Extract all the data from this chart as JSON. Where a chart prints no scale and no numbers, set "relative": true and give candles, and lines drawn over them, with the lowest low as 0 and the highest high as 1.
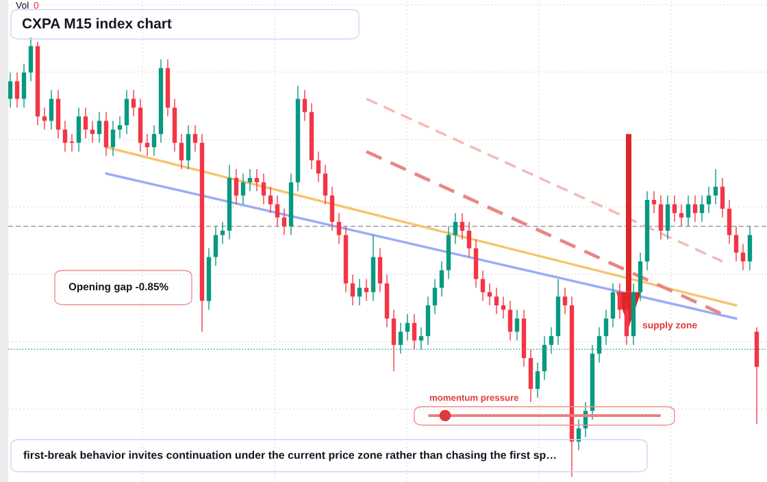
{
  "chart_data": {
    "type": "candlestick",
    "title": "CXPA M15 index chart",
    "relative": true,
    "grid": true,
    "categories": [
      null,
      null,
      null,
      null,
      null,
      null,
      null,
      null,
      null,
      null,
      null,
      null,
      null,
      null,
      null,
      null,
      null,
      null,
      null,
      null,
      null,
      null,
      null,
      null,
      null,
      null,
      null,
      null,
      null,
      null,
      null,
      null,
      null,
      null,
      null,
      null,
      null,
      null,
      null,
      null,
      null,
      null,
      null,
      null,
      null,
      null,
      null,
      null,
      null,
      null,
      null,
      null,
      null,
      null,
      null,
      null,
      null,
      null,
      null,
      null,
      null,
      null,
      null,
      null,
      null,
      null,
      null,
      null,
      null,
      null,
      null,
      null,
      null,
      null,
      null,
      null,
      null,
      null,
      null,
      null,
      null,
      null,
      null,
      null,
      null,
      null,
      null,
      null,
      null,
      null,
      null,
      null,
      null,
      null,
      null,
      null,
      null,
      null,
      null,
      null,
      null,
      null,
      null,
      null,
      null,
      null,
      null,
      null,
      null,
      null
    ],
    "ohlc": [
      [
        0.86,
        0.92,
        0.84,
        0.9
      ],
      [
        0.9,
        0.92,
        0.84,
        0.86
      ],
      [
        0.86,
        0.94,
        0.84,
        0.92
      ],
      [
        0.92,
        1.0,
        0.9,
        0.98
      ],
      [
        0.98,
        0.99,
        0.8,
        0.82
      ],
      [
        0.82,
        0.84,
        0.79,
        0.81
      ],
      [
        0.81,
        0.88,
        0.79,
        0.86
      ],
      [
        0.86,
        0.88,
        0.77,
        0.79
      ],
      [
        0.79,
        0.81,
        0.74,
        0.76
      ],
      [
        0.76,
        0.78,
        0.74,
        0.76
      ],
      [
        0.76,
        0.84,
        0.74,
        0.82
      ],
      [
        0.82,
        0.84,
        0.77,
        0.79
      ],
      [
        0.79,
        0.81,
        0.76,
        0.78
      ],
      [
        0.78,
        0.83,
        0.76,
        0.81
      ],
      [
        0.81,
        0.83,
        0.73,
        0.75
      ],
      [
        0.75,
        0.81,
        0.73,
        0.79
      ],
      [
        0.79,
        0.82,
        0.77,
        0.8
      ],
      [
        0.8,
        0.88,
        0.78,
        0.86
      ],
      [
        0.86,
        0.88,
        0.82,
        0.84
      ],
      [
        0.84,
        0.86,
        0.74,
        0.76
      ],
      [
        0.76,
        0.78,
        0.73,
        0.75
      ],
      [
        0.75,
        0.8,
        0.73,
        0.78
      ],
      [
        0.78,
        0.95,
        0.76,
        0.93
      ],
      [
        0.93,
        0.95,
        0.82,
        0.84
      ],
      [
        0.84,
        0.86,
        0.74,
        0.76
      ],
      [
        0.76,
        0.78,
        0.7,
        0.72
      ],
      [
        0.72,
        0.8,
        0.7,
        0.78
      ],
      [
        0.78,
        0.8,
        0.74,
        0.76
      ],
      [
        0.76,
        0.78,
        0.33,
        0.4
      ],
      [
        0.4,
        0.52,
        0.38,
        0.5
      ],
      [
        0.5,
        0.57,
        0.48,
        0.55
      ],
      [
        0.55,
        0.58,
        0.53,
        0.56
      ],
      [
        0.56,
        0.71,
        0.54,
        0.68
      ],
      [
        0.68,
        0.7,
        0.62,
        0.64
      ],
      [
        0.64,
        0.69,
        0.62,
        0.67
      ],
      [
        0.67,
        0.7,
        0.65,
        0.68
      ],
      [
        0.68,
        0.7,
        0.65,
        0.67
      ],
      [
        0.67,
        0.69,
        0.62,
        0.64
      ],
      [
        0.64,
        0.66,
        0.6,
        0.62
      ],
      [
        0.62,
        0.64,
        0.57,
        0.59
      ],
      [
        0.59,
        0.61,
        0.55,
        0.57
      ],
      [
        0.57,
        0.69,
        0.55,
        0.67
      ],
      [
        0.67,
        0.89,
        0.65,
        0.86
      ],
      [
        0.86,
        0.88,
        0.81,
        0.83
      ],
      [
        0.83,
        0.85,
        0.7,
        0.72
      ],
      [
        0.72,
        0.74,
        0.67,
        0.69
      ],
      [
        0.69,
        0.71,
        0.62,
        0.64
      ],
      [
        0.64,
        0.66,
        0.56,
        0.58
      ],
      [
        0.58,
        0.6,
        0.53,
        0.55
      ],
      [
        0.55,
        0.57,
        0.42,
        0.44
      ],
      [
        0.44,
        0.46,
        0.39,
        0.41
      ],
      [
        0.41,
        0.45,
        0.39,
        0.43
      ],
      [
        0.43,
        0.45,
        0.4,
        0.42
      ],
      [
        0.42,
        0.55,
        0.4,
        0.5
      ],
      [
        0.5,
        0.52,
        0.42,
        0.44
      ],
      [
        0.44,
        0.46,
        0.34,
        0.36
      ],
      [
        0.36,
        0.38,
        0.24,
        0.3
      ],
      [
        0.3,
        0.35,
        0.28,
        0.33
      ],
      [
        0.33,
        0.37,
        0.31,
        0.35
      ],
      [
        0.35,
        0.37,
        0.29,
        0.31
      ],
      [
        0.31,
        0.34,
        0.29,
        0.32
      ],
      [
        0.32,
        0.41,
        0.3,
        0.39
      ],
      [
        0.39,
        0.45,
        0.37,
        0.43
      ],
      [
        0.43,
        0.49,
        0.41,
        0.47
      ],
      [
        0.47,
        0.57,
        0.45,
        0.55
      ],
      [
        0.55,
        0.6,
        0.53,
        0.58
      ],
      [
        0.58,
        0.6,
        0.54,
        0.56
      ],
      [
        0.56,
        0.58,
        0.5,
        0.52
      ],
      [
        0.52,
        0.54,
        0.43,
        0.45
      ],
      [
        0.45,
        0.47,
        0.4,
        0.42
      ],
      [
        0.42,
        0.44,
        0.39,
        0.41
      ],
      [
        0.41,
        0.43,
        0.37,
        0.39
      ],
      [
        0.39,
        0.41,
        0.36,
        0.38
      ],
      [
        0.38,
        0.4,
        0.31,
        0.33
      ],
      [
        0.33,
        0.38,
        0.31,
        0.36
      ],
      [
        0.36,
        0.38,
        0.25,
        0.27
      ],
      [
        0.27,
        0.29,
        0.17,
        0.2
      ],
      [
        0.2,
        0.26,
        0.18,
        0.24
      ],
      [
        0.24,
        0.32,
        0.22,
        0.3
      ],
      [
        0.3,
        0.34,
        0.28,
        0.32
      ],
      [
        0.32,
        0.45,
        0.3,
        0.41
      ],
      [
        0.41,
        0.43,
        0.37,
        0.39
      ],
      [
        0.39,
        0.41,
        0.0,
        0.08
      ],
      [
        0.08,
        0.13,
        0.06,
        0.11
      ],
      [
        0.11,
        0.17,
        0.09,
        0.15
      ],
      [
        0.15,
        0.3,
        0.13,
        0.28
      ],
      [
        0.28,
        0.34,
        0.26,
        0.32
      ],
      [
        0.32,
        0.38,
        0.3,
        0.36
      ],
      [
        0.36,
        0.44,
        0.34,
        0.42
      ],
      [
        0.42,
        0.44,
        0.36,
        0.38
      ],
      [
        0.38,
        0.4,
        0.3,
        0.32
      ],
      [
        0.32,
        0.44,
        0.3,
        0.42
      ],
      [
        0.42,
        0.51,
        0.4,
        0.49
      ],
      [
        0.49,
        0.65,
        0.47,
        0.63
      ],
      [
        0.63,
        0.65,
        0.6,
        0.62
      ],
      [
        0.62,
        0.64,
        0.54,
        0.56
      ],
      [
        0.56,
        0.64,
        0.54,
        0.62
      ],
      [
        0.62,
        0.64,
        0.58,
        0.6
      ],
      [
        0.6,
        0.62,
        0.57,
        0.59
      ],
      [
        0.59,
        0.64,
        0.57,
        0.62
      ],
      [
        0.62,
        0.64,
        0.58,
        0.6
      ],
      [
        0.6,
        0.64,
        0.58,
        0.62
      ],
      [
        0.62,
        0.66,
        0.6,
        0.64
      ],
      [
        0.64,
        0.7,
        0.62,
        0.66
      ],
      [
        0.66,
        0.68,
        0.59,
        0.61
      ],
      [
        0.61,
        0.63,
        0.53,
        0.55
      ],
      [
        0.55,
        0.57,
        0.49,
        0.51
      ],
      [
        0.51,
        0.53,
        0.47,
        0.49
      ],
      [
        0.49,
        0.57,
        0.47,
        0.55
      ],
      [
        0.33,
        0.34,
        0.12,
        0.25
      ]
    ],
    "colors": [
      "#089981",
      "#f23645",
      "#089981",
      "#089981",
      "#f23645",
      "#f23645",
      "#089981",
      "#f23645",
      "#f23645",
      "#f23645",
      "#089981",
      "#f23645",
      "#f23645",
      "#089981",
      "#f23645",
      "#089981",
      "#089981",
      "#089981",
      "#f23645",
      "#f23645",
      "#f23645",
      "#089981",
      "#089981",
      "#f23645",
      "#f23645",
      "#f23645",
      "#089981",
      "#f23645",
      "#f23645",
      "#089981",
      "#089981",
      "#089981",
      "#089981",
      "#f23645",
      "#089981",
      "#089981",
      "#f23645",
      "#f23645",
      "#f23645",
      "#f23645",
      "#f23645",
      "#089981",
      "#089981",
      "#f23645",
      "#f23645",
      "#f23645",
      "#f23645",
      "#f23645",
      "#f23645",
      "#f23645",
      "#f23645",
      "#089981",
      "#f23645",
      "#089981",
      "#f23645",
      "#f23645",
      "#f23645",
      "#089981",
      "#089981",
      "#f23645",
      "#089981",
      "#089981",
      "#089981",
      "#089981",
      "#089981",
      "#089981",
      "#f23645",
      "#f23645",
      "#f23645",
      "#f23645",
      "#f23645",
      "#f23645",
      "#f23645",
      "#f23645",
      "#089981",
      "#f23645",
      "#f23645",
      "#089981",
      "#089981",
      "#089981",
      "#089981",
      "#f23645",
      "#f23645",
      "#089981",
      "#089981",
      "#089981",
      "#089981",
      "#089981",
      "#089981",
      "#f23645",
      "#f23645",
      "#089981",
      "#089981",
      "#089981",
      "#f23645",
      "#f23645",
      "#089981",
      "#f23645",
      "#f23645",
      "#089981",
      "#f23645",
      "#089981",
      "#089981",
      "#089981",
      "#f23645",
      "#f23645",
      "#f23645",
      "#f23645",
      "#089981",
      "#f23645"
    ],
    "series": [
      {
        "type": "line",
        "color": "#f7c16a",
        "line_style": "solid",
        "values": [
          null,
          null,
          null,
          null,
          null,
          null,
          null,
          null,
          null,
          null,
          null,
          null,
          null,
          null,
          0.75,
          null,
          null,
          null,
          null,
          null,
          null,
          null,
          null,
          null,
          null,
          null,
          null,
          null,
          null,
          null,
          null,
          null,
          null,
          null,
          null,
          null,
          null,
          null,
          null,
          null,
          null,
          null,
          null,
          null,
          null,
          null,
          null,
          null,
          null,
          null,
          null,
          null,
          null,
          null,
          null,
          null,
          null,
          null,
          null,
          null,
          null,
          null,
          null,
          null,
          null,
          null,
          null,
          null,
          null,
          null,
          null,
          null,
          null,
          null,
          null,
          null,
          null,
          null,
          null,
          null,
          null,
          null,
          null,
          null,
          null,
          null,
          null,
          null,
          null,
          null,
          null,
          null,
          null,
          null,
          null,
          null,
          null,
          null,
          null,
          null,
          null,
          null,
          null,
          null,
          null,
          null,
          0.39,
          null,
          null,
          null
        ]
      },
      {
        "type": "line",
        "color": "#93a9f5",
        "line_style": "solid",
        "values": [
          null,
          null,
          null,
          null,
          null,
          null,
          null,
          null,
          null,
          null,
          null,
          null,
          null,
          null,
          0.69,
          null,
          null,
          null,
          null,
          null,
          null,
          null,
          null,
          null,
          null,
          null,
          null,
          null,
          null,
          null,
          null,
          null,
          null,
          null,
          null,
          null,
          null,
          null,
          null,
          null,
          null,
          null,
          null,
          null,
          null,
          null,
          null,
          null,
          null,
          null,
          null,
          null,
          null,
          null,
          null,
          null,
          null,
          null,
          null,
          null,
          null,
          null,
          null,
          null,
          null,
          null,
          null,
          null,
          null,
          null,
          null,
          null,
          null,
          null,
          null,
          null,
          null,
          null,
          null,
          null,
          null,
          null,
          null,
          null,
          null,
          null,
          null,
          null,
          null,
          null,
          null,
          null,
          null,
          null,
          null,
          null,
          null,
          null,
          null,
          null,
          null,
          null,
          null,
          null,
          null,
          null,
          0.36,
          null,
          null,
          null
        ]
      },
      {
        "type": "line",
        "color": "#e98080",
        "line_style": "dashed",
        "values": [
          null,
          null,
          null,
          null,
          null,
          null,
          null,
          null,
          null,
          null,
          null,
          null,
          null,
          null,
          null,
          null,
          null,
          null,
          null,
          null,
          null,
          null,
          null,
          null,
          null,
          null,
          null,
          null,
          null,
          null,
          null,
          null,
          null,
          null,
          null,
          null,
          null,
          null,
          null,
          null,
          null,
          null,
          null,
          null,
          null,
          null,
          null,
          null,
          null,
          null,
          null,
          null,
          0.74,
          null,
          null,
          null,
          null,
          null,
          null,
          null,
          null,
          null,
          null,
          null,
          null,
          null,
          null,
          null,
          null,
          null,
          null,
          null,
          null,
          null,
          null,
          null,
          null,
          null,
          null,
          null,
          null,
          null,
          null,
          null,
          null,
          null,
          null,
          null,
          null,
          null,
          null,
          null,
          null,
          null,
          null,
          null,
          null,
          null,
          null,
          null,
          null,
          null,
          null,
          null,
          0.37,
          null,
          null,
          null,
          null,
          null
        ]
      },
      {
        "type": "line",
        "color": "#f4b4b4",
        "line_style": "dashed",
        "values": [
          null,
          null,
          null,
          null,
          null,
          null,
          null,
          null,
          null,
          null,
          null,
          null,
          null,
          null,
          null,
          null,
          null,
          null,
          null,
          null,
          null,
          null,
          null,
          null,
          null,
          null,
          null,
          null,
          null,
          null,
          null,
          null,
          null,
          null,
          null,
          null,
          null,
          null,
          null,
          null,
          null,
          null,
          null,
          null,
          null,
          null,
          null,
          null,
          null,
          null,
          null,
          null,
          0.86,
          null,
          null,
          null,
          null,
          null,
          null,
          null,
          null,
          null,
          null,
          null,
          null,
          null,
          null,
          null,
          null,
          null,
          null,
          null,
          null,
          null,
          null,
          null,
          null,
          null,
          null,
          null,
          null,
          null,
          null,
          null,
          null,
          null,
          null,
          null,
          null,
          null,
          null,
          null,
          null,
          null,
          null,
          null,
          null,
          null,
          null,
          null,
          null,
          null,
          null,
          null,
          0.49,
          null,
          null,
          null,
          null,
          null
        ]
      }
    ],
    "ref_lines": [
      {
        "axis": "y",
        "value": 0.57,
        "color": "#9a9a9a",
        "line_style": "dashed"
      },
      {
        "axis": "y",
        "value": 0.29,
        "color": "#1a9e8a",
        "line_style": "dotted"
      }
    ],
    "annotations": [
      "Vol",
      "0",
      "Opening gap -0.85%",
      "supply zone",
      "momentum pressure",
      "first-break behavior invites continuation under the current price zone rather than chasing the first sp…"
    ]
  }
}
